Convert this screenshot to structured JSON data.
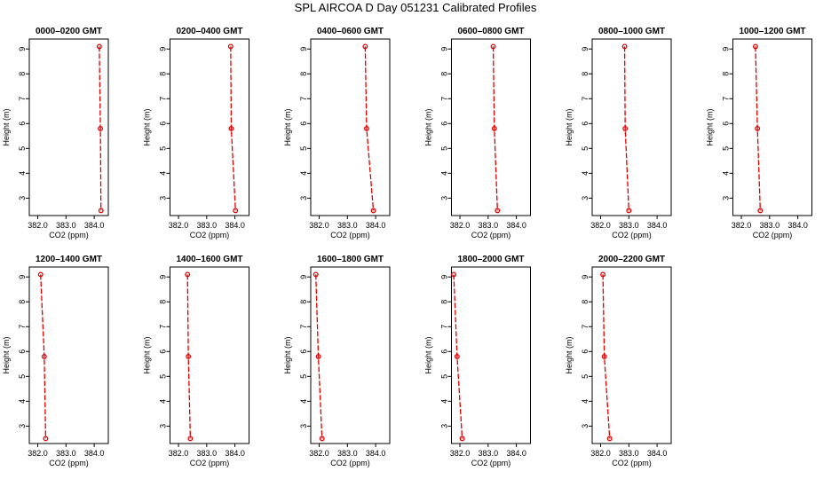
{
  "title": "SPL AIRCOA D  Day 051231  Calibrated Profiles",
  "colors": {
    "series": "#dd0000",
    "axis": "#000000",
    "background": "#ffffff"
  },
  "chart_data": [
    {
      "type": "line",
      "title": "0000–0200 GMT",
      "xlabel": "CO2 (ppm)",
      "ylabel": "Height (m)",
      "xlim": [
        381.7,
        384.5
      ],
      "ylim": [
        2.3,
        9.4
      ],
      "xticks": [
        "382.0",
        "383.0",
        "384.0"
      ],
      "yticks": [
        "3",
        "4",
        "5",
        "6",
        "7",
        "8",
        "9"
      ],
      "x": [
        384.18,
        384.22,
        384.24
      ],
      "y": [
        9.1,
        5.8,
        2.5
      ],
      "grid": false,
      "legend": "none"
    },
    {
      "type": "line",
      "title": "0200–0400 GMT",
      "xlabel": "CO2 (ppm)",
      "ylabel": "Height (m)",
      "xlim": [
        381.7,
        384.5
      ],
      "ylim": [
        2.3,
        9.4
      ],
      "xticks": [
        "382.0",
        "383.0",
        "384.0"
      ],
      "yticks": [
        "3",
        "4",
        "5",
        "6",
        "7",
        "8",
        "9"
      ],
      "x": [
        383.85,
        383.87,
        384.02
      ],
      "y": [
        9.1,
        5.8,
        2.5
      ],
      "grid": false,
      "legend": "none"
    },
    {
      "type": "line",
      "title": "0400–0600 GMT",
      "xlabel": "CO2 (ppm)",
      "ylabel": "Height (m)",
      "xlim": [
        381.7,
        384.5
      ],
      "ylim": [
        2.3,
        9.4
      ],
      "xticks": [
        "382.0",
        "383.0",
        "384.0"
      ],
      "yticks": [
        "3",
        "4",
        "5",
        "6",
        "7",
        "8",
        "9"
      ],
      "x": [
        383.63,
        383.68,
        383.92
      ],
      "y": [
        9.1,
        5.8,
        2.5
      ],
      "grid": false,
      "legend": "none"
    },
    {
      "type": "line",
      "title": "0600–0800 GMT",
      "xlabel": "CO2 (ppm)",
      "ylabel": "Height (m)",
      "xlim": [
        381.7,
        384.5
      ],
      "ylim": [
        2.3,
        9.4
      ],
      "xticks": [
        "382.0",
        "383.0",
        "384.0"
      ],
      "yticks": [
        "3",
        "4",
        "5",
        "6",
        "7",
        "8",
        "9"
      ],
      "x": [
        383.18,
        383.22,
        383.33
      ],
      "y": [
        9.1,
        5.8,
        2.5
      ],
      "grid": false,
      "legend": "none"
    },
    {
      "type": "line",
      "title": "0800–1000 GMT",
      "xlabel": "CO2 (ppm)",
      "ylabel": "Height (m)",
      "xlim": [
        381.7,
        384.5
      ],
      "ylim": [
        2.3,
        9.4
      ],
      "xticks": [
        "382.0",
        "383.0",
        "384.0"
      ],
      "yticks": [
        "3",
        "4",
        "5",
        "6",
        "7",
        "8",
        "9"
      ],
      "x": [
        382.85,
        382.87,
        383.0
      ],
      "y": [
        9.1,
        5.8,
        2.5
      ],
      "grid": false,
      "legend": "none"
    },
    {
      "type": "line",
      "title": "1000–1200 GMT",
      "xlabel": "CO2 (ppm)",
      "ylabel": "Height (m)",
      "xlim": [
        381.7,
        384.5
      ],
      "ylim": [
        2.3,
        9.4
      ],
      "xticks": [
        "382.0",
        "383.0",
        "384.0"
      ],
      "yticks": [
        "3",
        "4",
        "5",
        "6",
        "7",
        "8",
        "9"
      ],
      "x": [
        382.5,
        382.57,
        382.67
      ],
      "y": [
        9.1,
        5.8,
        2.5
      ],
      "grid": false,
      "legend": "none"
    },
    {
      "type": "line",
      "title": "1200–1400 GMT",
      "xlabel": "CO2 (ppm)",
      "ylabel": "Height (m)",
      "xlim": [
        381.7,
        384.5
      ],
      "ylim": [
        2.3,
        9.4
      ],
      "xticks": [
        "382.0",
        "383.0",
        "384.0"
      ],
      "yticks": [
        "3",
        "4",
        "5",
        "6",
        "7",
        "8",
        "9"
      ],
      "x": [
        382.1,
        382.23,
        382.28
      ],
      "y": [
        9.1,
        5.8,
        2.5
      ],
      "grid": false,
      "legend": "none"
    },
    {
      "type": "line",
      "title": "1400–1600 GMT",
      "xlabel": "CO2 (ppm)",
      "ylabel": "Height (m)",
      "xlim": [
        381.7,
        384.5
      ],
      "ylim": [
        2.3,
        9.4
      ],
      "xticks": [
        "382.0",
        "383.0",
        "384.0"
      ],
      "yticks": [
        "3",
        "4",
        "5",
        "6",
        "7",
        "8",
        "9"
      ],
      "x": [
        382.32,
        382.35,
        382.42
      ],
      "y": [
        9.1,
        5.8,
        2.5
      ],
      "grid": false,
      "legend": "none"
    },
    {
      "type": "line",
      "title": "1600–1800 GMT",
      "xlabel": "CO2 (ppm)",
      "ylabel": "Height (m)",
      "xlim": [
        381.7,
        384.5
      ],
      "ylim": [
        2.3,
        9.4
      ],
      "xticks": [
        "382.0",
        "383.0",
        "384.0"
      ],
      "yticks": [
        "3",
        "4",
        "5",
        "6",
        "7",
        "8",
        "9"
      ],
      "x": [
        381.88,
        381.97,
        382.1
      ],
      "y": [
        9.1,
        5.8,
        2.5
      ],
      "grid": false,
      "legend": "none"
    },
    {
      "type": "line",
      "title": "1800–2000 GMT",
      "xlabel": "CO2 (ppm)",
      "ylabel": "Height (m)",
      "xlim": [
        381.7,
        384.5
      ],
      "ylim": [
        2.3,
        9.4
      ],
      "xticks": [
        "382.0",
        "383.0",
        "384.0"
      ],
      "yticks": [
        "3",
        "4",
        "5",
        "6",
        "7",
        "8",
        "9"
      ],
      "x": [
        381.78,
        381.9,
        382.08
      ],
      "y": [
        9.1,
        5.8,
        2.5
      ],
      "grid": false,
      "legend": "none"
    },
    {
      "type": "line",
      "title": "2000–2200 GMT",
      "xlabel": "CO2 (ppm)",
      "ylabel": "Height (m)",
      "xlim": [
        381.7,
        384.5
      ],
      "ylim": [
        2.3,
        9.4
      ],
      "xticks": [
        "382.0",
        "383.0",
        "384.0"
      ],
      "yticks": [
        "3",
        "4",
        "5",
        "6",
        "7",
        "8",
        "9"
      ],
      "x": [
        382.08,
        382.13,
        382.32
      ],
      "y": [
        9.1,
        5.8,
        2.5
      ],
      "grid": false,
      "legend": "none"
    }
  ]
}
